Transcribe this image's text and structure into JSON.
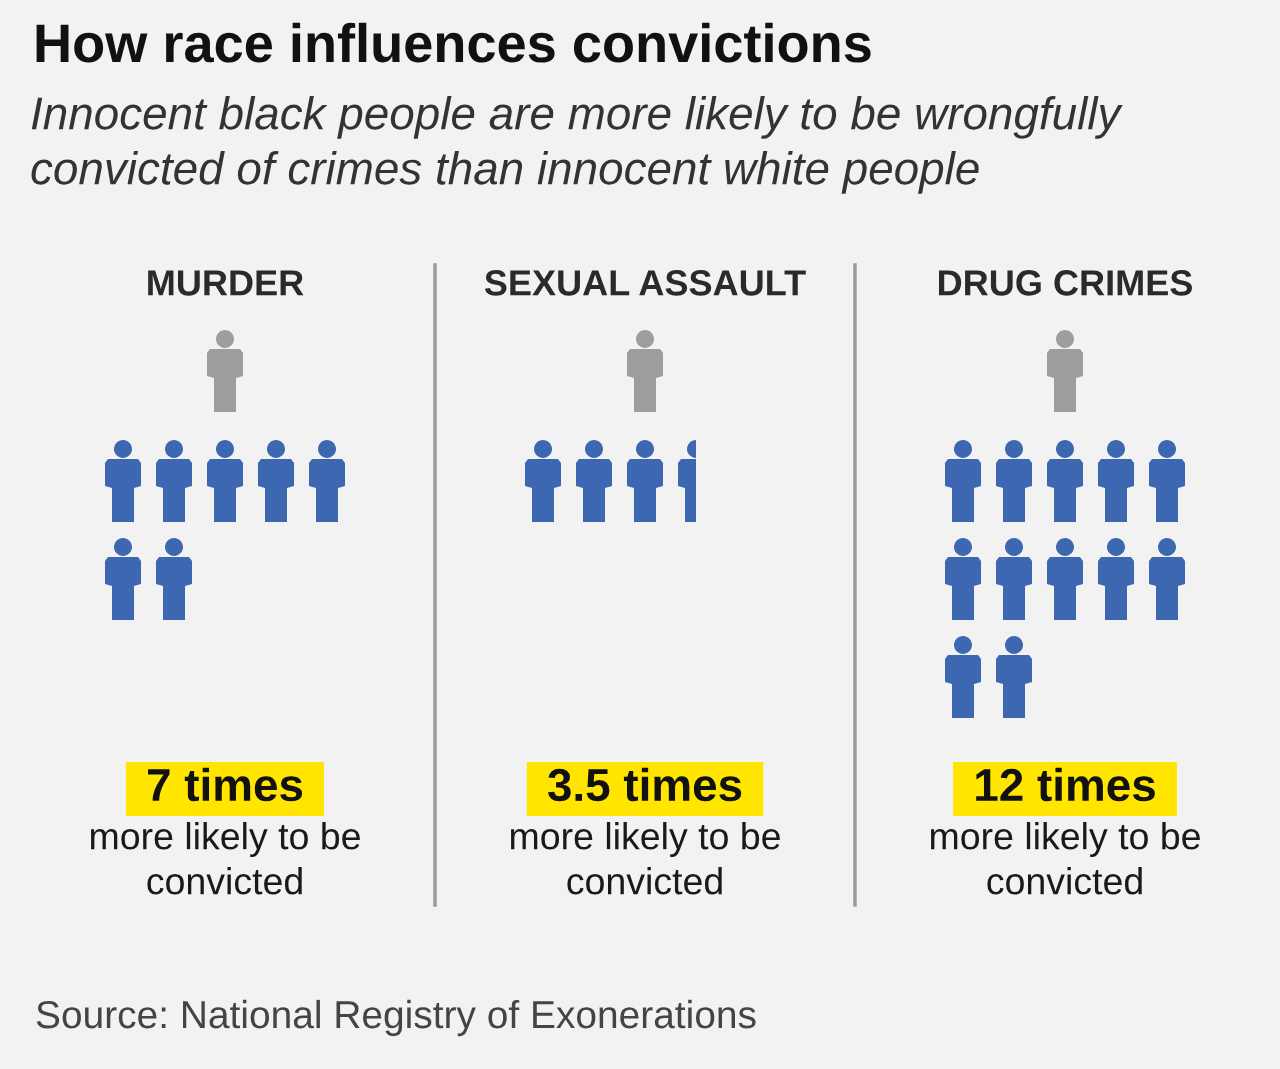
{
  "chart_data": {
    "type": "other",
    "title": "How race influences convictions",
    "subtitle": "Innocent black people are more likely to be wrongfully convicted of crimes than innocent white people",
    "categories": [
      "MURDER",
      "SEXUAL ASSAULT",
      "DRUG CRIMES"
    ],
    "values": [
      7,
      3.5,
      12
    ],
    "value_labels": [
      "7 times",
      "3.5 times",
      "12 times"
    ],
    "color": "#3d67b1",
    "annotations": [
      "more likely to be convicted",
      "more likely to be convicted",
      "more likely to be convicted",
      "Source: National Registry of Exonerations"
    ]
  }
}
